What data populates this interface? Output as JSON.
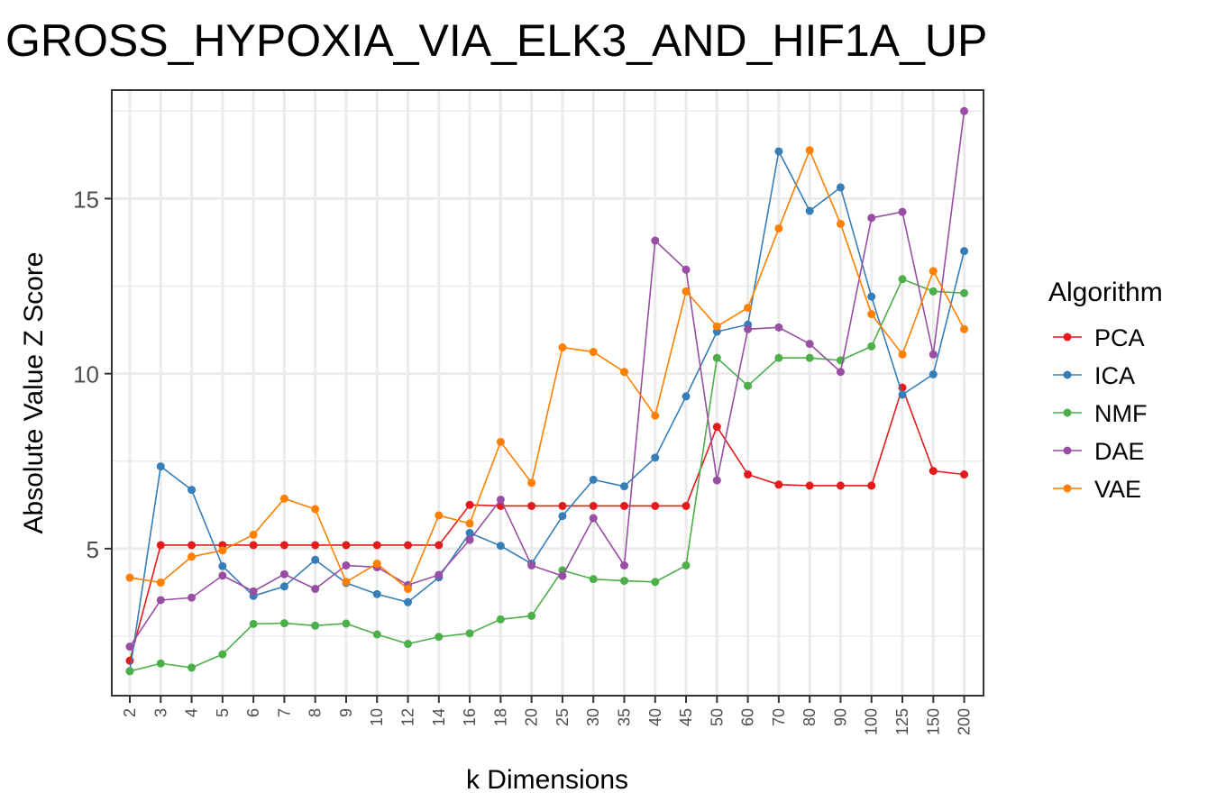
{
  "chart_data": {
    "type": "line",
    "title": "GROSS_HYPOXIA_VIA_ELK3_AND_HIF1A_UP",
    "xlabel": "k Dimensions",
    "ylabel": "Absolute Value Z Score",
    "ylim": [
      0.8,
      18.1
    ],
    "y_ticks": [
      5,
      10,
      15
    ],
    "y_tick_labels": [
      "5",
      "10",
      "15"
    ],
    "grid": true,
    "legend_title": "Algorithm",
    "legend_position": "right",
    "categories": [
      "2",
      "3",
      "4",
      "5",
      "6",
      "7",
      "8",
      "9",
      "10",
      "12",
      "14",
      "16",
      "18",
      "20",
      "25",
      "30",
      "35",
      "40",
      "45",
      "50",
      "60",
      "70",
      "80",
      "90",
      "100",
      "125",
      "150",
      "200"
    ],
    "series": [
      {
        "name": "PCA",
        "color": "#e41a1c",
        "values": [
          1.8,
          5.1,
          5.1,
          5.1,
          5.1,
          5.1,
          5.1,
          5.1,
          5.1,
          5.1,
          5.1,
          6.25,
          6.22,
          6.22,
          6.22,
          6.22,
          6.22,
          6.22,
          6.22,
          8.48,
          7.12,
          6.83,
          6.8,
          6.8,
          6.8,
          9.6,
          7.22,
          7.12
        ]
      },
      {
        "name": "ICA",
        "color": "#377eb8",
        "values": [
          1.5,
          7.35,
          6.68,
          4.5,
          3.65,
          3.92,
          4.68,
          4.02,
          3.7,
          3.47,
          4.18,
          5.45,
          5.08,
          4.57,
          5.93,
          6.97,
          6.78,
          7.6,
          9.35,
          11.2,
          11.4,
          16.35,
          14.65,
          15.32,
          12.2,
          9.4,
          9.98,
          13.5
        ]
      },
      {
        "name": "NMF",
        "color": "#4daf4a",
        "values": [
          1.5,
          1.72,
          1.6,
          1.98,
          2.85,
          2.87,
          2.8,
          2.86,
          2.55,
          2.28,
          2.48,
          2.58,
          2.98,
          3.08,
          4.38,
          4.13,
          4.08,
          4.05,
          4.52,
          10.45,
          9.65,
          10.45,
          10.45,
          10.38,
          10.78,
          12.7,
          12.35,
          12.3
        ]
      },
      {
        "name": "DAE",
        "color": "#984ea3",
        "values": [
          2.2,
          3.53,
          3.6,
          4.23,
          3.78,
          4.27,
          3.85,
          4.52,
          4.47,
          3.96,
          4.25,
          5.25,
          6.4,
          4.52,
          4.22,
          5.87,
          4.52,
          13.8,
          12.97,
          6.95,
          11.27,
          11.32,
          10.85,
          10.05,
          14.45,
          14.62,
          10.55,
          17.5
        ]
      },
      {
        "name": "VAE",
        "color": "#ff7f00",
        "values": [
          4.17,
          4.03,
          4.77,
          4.95,
          5.4,
          6.43,
          6.13,
          4.05,
          4.57,
          3.85,
          5.95,
          5.72,
          8.05,
          6.88,
          10.75,
          10.62,
          10.05,
          8.8,
          12.35,
          11.35,
          11.88,
          14.15,
          16.38,
          14.28,
          11.7,
          10.55,
          12.93,
          11.27
        ]
      }
    ]
  }
}
